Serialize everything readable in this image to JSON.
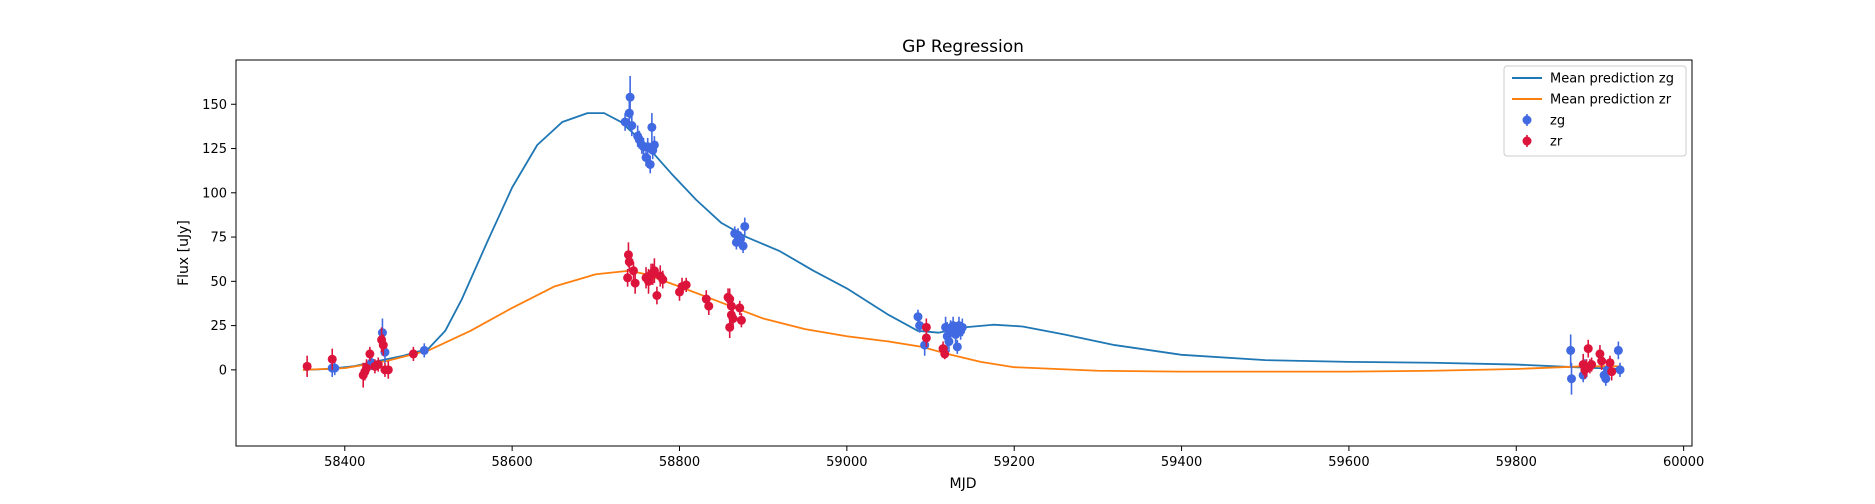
{
  "chart_data": {
    "type": "scatter",
    "title": "GP Regression",
    "xlabel": "MJD",
    "ylabel": "Flux [uJy]",
    "xlim": [
      58270,
      60010
    ],
    "ylim": [
      -43,
      175
    ],
    "xticks": [
      58400,
      58600,
      58800,
      59000,
      59200,
      59400,
      59600,
      59800,
      60000
    ],
    "yticks": [
      0,
      25,
      50,
      75,
      100,
      125,
      150
    ],
    "grid": false,
    "legend_position": "top-right",
    "colors": {
      "mean_zg": "#1f77b4",
      "mean_zr": "#ff7f0e",
      "zg": "#4169e1",
      "zr": "#dc143c"
    },
    "lines": [
      {
        "name": "Mean prediction zg",
        "color": "#1f77b4",
        "points": [
          [
            58350,
            0
          ],
          [
            58380,
            0.5
          ],
          [
            58410,
            2
          ],
          [
            58440,
            5
          ],
          [
            58470,
            8
          ],
          [
            58500,
            12
          ],
          [
            58520,
            22
          ],
          [
            58540,
            40
          ],
          [
            58570,
            72
          ],
          [
            58600,
            103
          ],
          [
            58630,
            127
          ],
          [
            58660,
            140
          ],
          [
            58690,
            145
          ],
          [
            58710,
            145
          ],
          [
            58730,
            140
          ],
          [
            58760,
            127
          ],
          [
            58790,
            111
          ],
          [
            58820,
            96
          ],
          [
            58850,
            83
          ],
          [
            58880,
            75
          ],
          [
            58920,
            67
          ],
          [
            58960,
            56
          ],
          [
            59000,
            46
          ],
          [
            59050,
            31
          ],
          [
            59085,
            22
          ],
          [
            59110,
            21
          ],
          [
            59140,
            24
          ],
          [
            59175,
            25.5
          ],
          [
            59210,
            24.5
          ],
          [
            59260,
            20
          ],
          [
            59320,
            14
          ],
          [
            59400,
            8.5
          ],
          [
            59500,
            5.5
          ],
          [
            59600,
            4.5
          ],
          [
            59700,
            4
          ],
          [
            59800,
            3
          ],
          [
            59870,
            1.5
          ],
          [
            59925,
            0.5
          ]
        ]
      },
      {
        "name": "Mean prediction zr",
        "color": "#ff7f0e",
        "points": [
          [
            58350,
            0
          ],
          [
            58400,
            1
          ],
          [
            58450,
            5
          ],
          [
            58500,
            11
          ],
          [
            58550,
            22
          ],
          [
            58600,
            35
          ],
          [
            58650,
            47
          ],
          [
            58700,
            54
          ],
          [
            58740,
            56
          ],
          [
            58760,
            54
          ],
          [
            58800,
            47
          ],
          [
            58850,
            38
          ],
          [
            58900,
            29
          ],
          [
            58950,
            23
          ],
          [
            59000,
            19
          ],
          [
            59050,
            16
          ],
          [
            59090,
            13
          ],
          [
            59120,
            9
          ],
          [
            59160,
            4.5
          ],
          [
            59200,
            1.5
          ],
          [
            59300,
            -0.5
          ],
          [
            59400,
            -1
          ],
          [
            59500,
            -1
          ],
          [
            59600,
            -1
          ],
          [
            59700,
            -0.5
          ],
          [
            59800,
            0.5
          ],
          [
            59880,
            2
          ],
          [
            59925,
            2
          ]
        ]
      }
    ],
    "series": [
      {
        "name": "zg",
        "color": "#4169e1",
        "points": [
          [
            58385,
            1,
            5
          ],
          [
            58388,
            1,
            4
          ],
          [
            58432,
            4,
            4
          ],
          [
            58445,
            21,
            8
          ],
          [
            58448,
            10,
            6
          ],
          [
            58495,
            11,
            4
          ],
          [
            58735,
            140,
            5
          ],
          [
            58740,
            145,
            8
          ],
          [
            58741,
            154,
            12
          ],
          [
            58743,
            138,
            6
          ],
          [
            58750,
            132,
            6
          ],
          [
            58752,
            130,
            5
          ],
          [
            58755,
            127,
            5
          ],
          [
            58757,
            126,
            5
          ],
          [
            58760,
            120,
            5
          ],
          [
            58762,
            126,
            5
          ],
          [
            58765,
            116,
            5
          ],
          [
            58767,
            137,
            8
          ],
          [
            58768,
            124,
            5
          ],
          [
            58770,
            127,
            5
          ],
          [
            58866,
            77,
            4
          ],
          [
            58868,
            72,
            4
          ],
          [
            58870,
            76,
            4
          ],
          [
            58873,
            74,
            4
          ],
          [
            58876,
            70,
            4
          ],
          [
            58878,
            81,
            5
          ],
          [
            59085,
            30,
            4
          ],
          [
            59087,
            25,
            4
          ],
          [
            59093,
            14,
            6
          ],
          [
            59118,
            24,
            6
          ],
          [
            59120,
            19,
            8
          ],
          [
            59122,
            16,
            6
          ],
          [
            59124,
            23,
            5
          ],
          [
            59127,
            25,
            5
          ],
          [
            59130,
            20,
            5
          ],
          [
            59132,
            13,
            4
          ],
          [
            59134,
            25,
            5
          ],
          [
            59136,
            22,
            5
          ],
          [
            59138,
            24,
            5
          ],
          [
            59865,
            11,
            9
          ],
          [
            59866,
            -5,
            9
          ],
          [
            59880,
            -3,
            4
          ],
          [
            59882,
            2,
            4
          ],
          [
            59905,
            -3,
            4
          ],
          [
            59907,
            -5,
            4
          ],
          [
            59909,
            0,
            3
          ],
          [
            59922,
            11,
            5
          ],
          [
            59924,
            0,
            4
          ]
        ]
      },
      {
        "name": "zr",
        "color": "#dc143c",
        "points": [
          [
            58355,
            2,
            6
          ],
          [
            58385,
            6,
            6
          ],
          [
            58422,
            -3,
            7
          ],
          [
            58424,
            -1,
            5
          ],
          [
            58426,
            1,
            5
          ],
          [
            58430,
            9,
            4
          ],
          [
            58436,
            2,
            4
          ],
          [
            58440,
            3,
            4
          ],
          [
            58444,
            17,
            7
          ],
          [
            58446,
            14,
            6
          ],
          [
            58448,
            0,
            4
          ],
          [
            58452,
            0,
            5
          ],
          [
            58482,
            9,
            4
          ],
          [
            58738,
            52,
            5
          ],
          [
            58739,
            65,
            7
          ],
          [
            58740,
            61,
            5
          ],
          [
            58745,
            56,
            5
          ],
          [
            58747,
            49,
            6
          ],
          [
            58760,
            52,
            6
          ],
          [
            58763,
            50,
            7
          ],
          [
            58766,
            54,
            6
          ],
          [
            58768,
            54,
            6
          ],
          [
            58770,
            56,
            7
          ],
          [
            58773,
            42,
            5
          ],
          [
            58777,
            53,
            6
          ],
          [
            58780,
            51,
            5
          ],
          [
            58800,
            44,
            5
          ],
          [
            58803,
            47,
            5
          ],
          [
            58808,
            48,
            4
          ],
          [
            58832,
            40,
            5
          ],
          [
            58835,
            36,
            5
          ],
          [
            58858,
            41,
            5
          ],
          [
            58860,
            40,
            6
          ],
          [
            58862,
            36,
            6
          ],
          [
            58862,
            31,
            6
          ],
          [
            58864,
            29,
            6
          ],
          [
            58860,
            24,
            6
          ],
          [
            58872,
            35,
            4
          ],
          [
            58874,
            28,
            4
          ],
          [
            59095,
            24,
            5
          ],
          [
            59095,
            18,
            5
          ],
          [
            59115,
            12,
            4
          ],
          [
            59117,
            9,
            3
          ],
          [
            59880,
            3,
            6
          ],
          [
            59882,
            0,
            5
          ],
          [
            59884,
            1,
            5
          ],
          [
            59886,
            12,
            5
          ],
          [
            59888,
            2,
            4
          ],
          [
            59890,
            3,
            4
          ],
          [
            59900,
            9,
            5
          ],
          [
            59902,
            5,
            5
          ],
          [
            59912,
            4,
            4
          ],
          [
            59914,
            -1,
            5
          ]
        ]
      }
    ],
    "legend": [
      {
        "label": "Mean prediction zg",
        "kind": "line",
        "color": "#1f77b4"
      },
      {
        "label": "Mean prediction zr",
        "kind": "line",
        "color": "#ff7f0e"
      },
      {
        "label": "zg",
        "kind": "marker",
        "color": "#4169e1"
      },
      {
        "label": "zr",
        "kind": "marker",
        "color": "#dc143c"
      }
    ]
  }
}
